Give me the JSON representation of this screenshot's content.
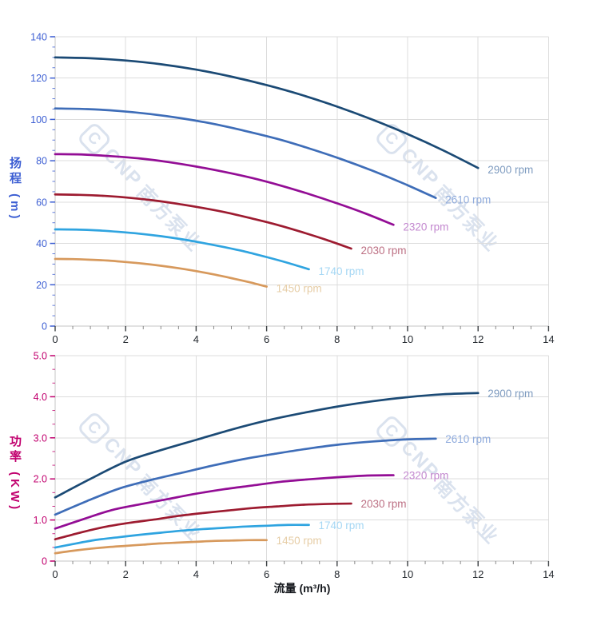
{
  "watermark": {
    "brand": "CNP",
    "company": "南方泵业",
    "logo_glyph": "C",
    "color": "#c2cfe3"
  },
  "theme": {
    "background": "#ffffff",
    "grid_color": "#dcdcdc",
    "axis_line_color": "#c6c6c6",
    "x_tick_color": "#3c4043",
    "x_tick_minor_color": "#8a8a8a",
    "x_tick_label_color": "#24292f"
  },
  "chart_data": [
    {
      "type": "line",
      "name": "head-chart",
      "title": "",
      "ylabel": "扬程 (m)",
      "xlabel": "",
      "xlim": [
        0,
        14
      ],
      "ylim": [
        0,
        140
      ],
      "grid": true,
      "legend": "curve-end-labels",
      "axis_color": "#3d5fd3",
      "x_ticks": {
        "values": [
          0,
          2,
          4,
          6,
          8,
          10,
          12,
          14
        ],
        "labels": [
          "0",
          "2",
          "4",
          "6",
          "8",
          "10",
          "12",
          "14"
        ]
      },
      "y_ticks": {
        "values": [
          0,
          20,
          40,
          60,
          80,
          100,
          120,
          140
        ],
        "labels": [
          "0",
          "20",
          "40",
          "60",
          "80",
          "100",
          "120",
          "140"
        ]
      },
      "x_minor_step": 0.5,
      "y_minor_step": 5,
      "series": [
        {
          "name": "2900 rpm",
          "color": "#1b4a75",
          "label_color": "#7f9cc0",
          "points": [
            [
              0,
              130
            ],
            [
              1,
              129.6
            ],
            [
              2,
              128.5
            ],
            [
              3,
              126.7
            ],
            [
              4,
              124.1
            ],
            [
              5,
              120.7
            ],
            [
              6,
              116.6
            ],
            [
              7,
              111.8
            ],
            [
              8,
              106.2
            ],
            [
              9,
              99.9
            ],
            [
              10,
              92.9
            ],
            [
              11,
              85.1
            ],
            [
              12,
              76.5
            ]
          ]
        },
        {
          "name": "2610 rpm",
          "color": "#3e6db8",
          "label_color": "#8fabdd",
          "points": [
            [
              0,
              105.3
            ],
            [
              0.9,
              105.0
            ],
            [
              1.8,
              104.1
            ],
            [
              2.7,
              102.6
            ],
            [
              3.6,
              100.5
            ],
            [
              4.5,
              97.8
            ],
            [
              5.4,
              94.4
            ],
            [
              6.3,
              90.6
            ],
            [
              7.2,
              86.0
            ],
            [
              8.1,
              80.9
            ],
            [
              9,
              75.2
            ],
            [
              9.9,
              68.9
            ],
            [
              10.8,
              62.0
            ]
          ]
        },
        {
          "name": "2320 rpm",
          "color": "#930d95",
          "label_color": "#c388cf",
          "points": [
            [
              0,
              83.2
            ],
            [
              0.8,
              83.0
            ],
            [
              1.6,
              82.2
            ],
            [
              2.4,
              81.1
            ],
            [
              3.2,
              79.4
            ],
            [
              4,
              77.2
            ],
            [
              4.8,
              74.6
            ],
            [
              5.6,
              71.6
            ],
            [
              6.4,
              68.0
            ],
            [
              7.2,
              63.9
            ],
            [
              8,
              59.4
            ],
            [
              8.8,
              54.5
            ],
            [
              9.6,
              49.0
            ]
          ]
        },
        {
          "name": "2030 rpm",
          "color": "#9d1b30",
          "label_color": "#bc6f83",
          "points": [
            [
              0,
              63.7
            ],
            [
              0.7,
              63.5
            ],
            [
              1.4,
              63.0
            ],
            [
              2.1,
              62.1
            ],
            [
              2.8,
              60.8
            ],
            [
              3.5,
              59.1
            ],
            [
              4.2,
              57.1
            ],
            [
              4.9,
              54.8
            ],
            [
              5.6,
              52.0
            ],
            [
              6.3,
              49.0
            ],
            [
              7,
              45.5
            ],
            [
              7.7,
              41.7
            ],
            [
              8.4,
              37.5
            ]
          ]
        },
        {
          "name": "1740 rpm",
          "color": "#2fa4e0",
          "label_color": "#a5d7f4",
          "points": [
            [
              0,
              46.8
            ],
            [
              0.6,
              46.7
            ],
            [
              1.2,
              46.3
            ],
            [
              1.8,
              45.6
            ],
            [
              2.4,
              44.7
            ],
            [
              3,
              43.5
            ],
            [
              3.6,
              42.0
            ],
            [
              4.2,
              40.2
            ],
            [
              4.8,
              38.2
            ],
            [
              5.4,
              36.0
            ],
            [
              6,
              33.4
            ],
            [
              6.6,
              30.6
            ],
            [
              7.2,
              27.5
            ]
          ]
        },
        {
          "name": "1450 rpm",
          "color": "#d7995c",
          "label_color": "#e6cda6",
          "points": [
            [
              0,
              32.5
            ],
            [
              0.5,
              32.4
            ],
            [
              1,
              32.1
            ],
            [
              1.5,
              31.7
            ],
            [
              2,
              31.0
            ],
            [
              2.5,
              30.2
            ],
            [
              3,
              29.2
            ],
            [
              3.5,
              28.0
            ],
            [
              4,
              26.6
            ],
            [
              4.5,
              25.0
            ],
            [
              5,
              23.2
            ],
            [
              5.5,
              21.3
            ],
            [
              6,
              19.1
            ]
          ]
        }
      ]
    },
    {
      "type": "line",
      "name": "power-chart",
      "title": "",
      "ylabel": "功率 (KW)",
      "xlabel": "流量 (m³/h)",
      "xlim": [
        0,
        14
      ],
      "ylim": [
        0,
        5
      ],
      "grid": true,
      "legend": "curve-end-labels",
      "axis_color": "#c1006e",
      "x_ticks": {
        "values": [
          0,
          2,
          4,
          6,
          8,
          10,
          12,
          14
        ],
        "labels": [
          "0",
          "2",
          "4",
          "6",
          "8",
          "10",
          "12",
          "14"
        ]
      },
      "y_ticks": {
        "values": [
          0,
          1,
          2,
          3,
          4,
          5
        ],
        "labels": [
          "0",
          "1.0",
          "2.0",
          "3.0",
          "4.0",
          "5.0"
        ]
      },
      "x_minor_step": 0.5,
      "y_minor_step": 0.3333,
      "series": [
        {
          "name": "2900 rpm",
          "color": "#1b4a75",
          "label_color": "#7f9cc0",
          "points": [
            [
              0,
              1.55
            ],
            [
              1,
              2.0
            ],
            [
              2,
              2.42
            ],
            [
              3,
              2.7
            ],
            [
              4,
              2.95
            ],
            [
              5,
              3.2
            ],
            [
              6,
              3.42
            ],
            [
              7,
              3.6
            ],
            [
              8,
              3.76
            ],
            [
              9,
              3.89
            ],
            [
              10,
              3.99
            ],
            [
              11,
              4.06
            ],
            [
              12,
              4.09
            ]
          ]
        },
        {
          "name": "2610 rpm",
          "color": "#3e6db8",
          "label_color": "#8fabdd",
          "points": [
            [
              0,
              1.13
            ],
            [
              0.9,
              1.46
            ],
            [
              1.8,
              1.76
            ],
            [
              2.7,
              1.97
            ],
            [
              3.6,
              2.15
            ],
            [
              4.5,
              2.33
            ],
            [
              5.4,
              2.49
            ],
            [
              6.3,
              2.62
            ],
            [
              7.2,
              2.74
            ],
            [
              8.1,
              2.84
            ],
            [
              9,
              2.91
            ],
            [
              9.9,
              2.96
            ],
            [
              10.8,
              2.98
            ]
          ]
        },
        {
          "name": "2320 rpm",
          "color": "#930d95",
          "label_color": "#c388cf",
          "points": [
            [
              0,
              0.79
            ],
            [
              0.8,
              1.02
            ],
            [
              1.6,
              1.24
            ],
            [
              2.4,
              1.38
            ],
            [
              3.2,
              1.51
            ],
            [
              4,
              1.64
            ],
            [
              4.8,
              1.75
            ],
            [
              5.6,
              1.84
            ],
            [
              6.4,
              1.93
            ],
            [
              7.2,
              1.99
            ],
            [
              8,
              2.04
            ],
            [
              8.8,
              2.08
            ],
            [
              9.6,
              2.09
            ]
          ]
        },
        {
          "name": "2030 rpm",
          "color": "#9d1b30",
          "label_color": "#bc6f83",
          "points": [
            [
              0,
              0.53
            ],
            [
              0.7,
              0.69
            ],
            [
              1.4,
              0.83
            ],
            [
              2.1,
              0.93
            ],
            [
              2.8,
              1.01
            ],
            [
              3.5,
              1.1
            ],
            [
              4.2,
              1.17
            ],
            [
              4.9,
              1.23
            ],
            [
              5.6,
              1.29
            ],
            [
              6.3,
              1.33
            ],
            [
              7,
              1.37
            ],
            [
              7.7,
              1.39
            ],
            [
              8.4,
              1.4
            ]
          ]
        },
        {
          "name": "1740 rpm",
          "color": "#2fa4e0",
          "label_color": "#a5d7f4",
          "points": [
            [
              0,
              0.33
            ],
            [
              0.6,
              0.43
            ],
            [
              1.2,
              0.52
            ],
            [
              1.8,
              0.58
            ],
            [
              2.4,
              0.64
            ],
            [
              3,
              0.69
            ],
            [
              3.6,
              0.74
            ],
            [
              4.2,
              0.78
            ],
            [
              4.8,
              0.81
            ],
            [
              5.4,
              0.84
            ],
            [
              6,
              0.86
            ],
            [
              6.6,
              0.88
            ],
            [
              7.2,
              0.88
            ]
          ]
        },
        {
          "name": "1450 rpm",
          "color": "#d7995c",
          "label_color": "#e6cda6",
          "points": [
            [
              0,
              0.19
            ],
            [
              0.5,
              0.25
            ],
            [
              1,
              0.3
            ],
            [
              1.5,
              0.34
            ],
            [
              2,
              0.37
            ],
            [
              2.5,
              0.4
            ],
            [
              3,
              0.43
            ],
            [
              3.5,
              0.45
            ],
            [
              4,
              0.47
            ],
            [
              4.5,
              0.49
            ],
            [
              5,
              0.5
            ],
            [
              5.5,
              0.51
            ],
            [
              6,
              0.51
            ]
          ]
        }
      ]
    }
  ]
}
